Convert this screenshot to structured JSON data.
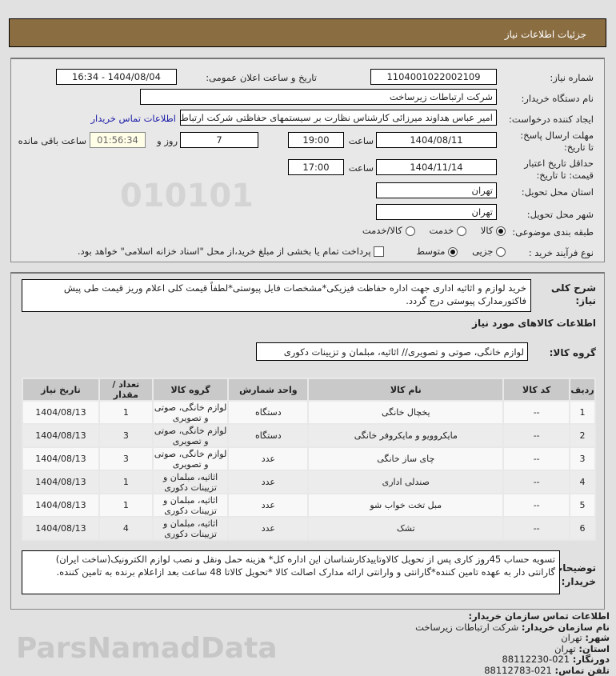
{
  "header": {
    "title": "جزئیات اطلاعات نیاز"
  },
  "form": {
    "need_number_label": "شماره نیاز:",
    "need_number": "1104001022002109",
    "announce_label": "تاریخ و ساعت اعلان عمومی:",
    "announce_value": "1404/08/04 - 16:34",
    "buyer_org_label": "نام دستگاه خریدار:",
    "buyer_org": "شرکت ارتباطات زیرساخت",
    "creator_label": "ایجاد کننده درخواست:",
    "creator": "امیر عباس هداوند میرزائی کارشناس نظارت بر سیستمهای حفاظتی شرکت ارتباطات زیرساخت",
    "contact_link": "اطلاعات تماس خریدار",
    "deadline_label": "مهلت ارسال پاسخ: تا تاریخ:",
    "deadline_date": "1404/08/11",
    "time_label": "ساعت",
    "deadline_time": "19:00",
    "days": "7",
    "days_label": "روز و",
    "remaining": "01:56:34",
    "remaining_label": "ساعت باقی مانده",
    "validity_label": "حداقل تاریخ اعتبار قیمت: تا تاریخ:",
    "validity_date": "1404/11/14",
    "validity_time": "17:00",
    "province_label": "استان محل تحویل:",
    "province": "تهران",
    "city_label": "شهر محل تحویل:",
    "city": "تهران",
    "category_label": "طبقه بندی موضوعی:",
    "category_options": [
      "کالا",
      "خدمت",
      "کالا/خدمت"
    ],
    "category_selected": "کالا",
    "process_label": "نوع فرآیند خرید :",
    "process_options": [
      "جزیی",
      "متوسط"
    ],
    "process_selected": "متوسط",
    "treasury_text": "پرداخت تمام یا بخشی از مبلغ خرید،از محل \"اسناد خزانه اسلامی\" خواهد بود."
  },
  "details": {
    "desc_label": "شرح کلی نیاز:",
    "desc": "خرید لوازم و اثاثیه اداری جهت اداره حفاظت فیزیکی*مشخصات فایل پیوستی*لطفاً قیمت کلی اعلام وریز قیمت طی پیش فاکتورمدارک پیوستی درج گردد.",
    "goods_title": "اطلاعات کالاهای مورد نیاز",
    "group_label": "گروه کالا:",
    "group": "لوازم خانگی، صوتی و تصویری// اثاثیه، مبلمان و تزیینات دکوری",
    "table": {
      "headers": [
        "ردیف",
        "کد کالا",
        "نام کالا",
        "واحد شمارش",
        "گروه کالا",
        "تعداد / مقدار",
        "تاریخ نیاز"
      ],
      "rows": [
        [
          "1",
          "--",
          "یخچال خانگی",
          "دستگاه",
          "لوازم خانگی، صوتی و تصویری",
          "1",
          "1404/08/13"
        ],
        [
          "2",
          "--",
          "مایکروویو و مایکروفر خانگی",
          "دستگاه",
          "لوازم خانگی، صوتی و تصویری",
          "3",
          "1404/08/13"
        ],
        [
          "3",
          "--",
          "چای ساز خانگی",
          "عدد",
          "لوازم خانگی، صوتی و تصویری",
          "3",
          "1404/08/13"
        ],
        [
          "4",
          "--",
          "صندلی اداری",
          "عدد",
          "اثاثیه، مبلمان و تزیینات دکوری",
          "1",
          "1404/08/13"
        ],
        [
          "5",
          "--",
          "مبل تخت خواب شو",
          "عدد",
          "اثاثیه، مبلمان و تزیینات دکوری",
          "1",
          "1404/08/13"
        ],
        [
          "6",
          "--",
          "تشک",
          "عدد",
          "اثاثیه، مبلمان و تزیینات دکوری",
          "4",
          "1404/08/13"
        ]
      ]
    },
    "notes_label": "توضیحات خریدار:",
    "notes": "تسویه حساب 45روز کاری پس از تحویل کالاوتاییدکارشناسان این اداره کل* هزینه حمل ونقل و نصب لوازم الکترونیک(ساخت ایران) گارانتی دار به عهده تامین کننده*گارانتی و وارانتی ارائه مدارک اصالت کالا *تحویل کالاتا 48 ساعت بعد ازاعلام برنده به تامین کننده."
  },
  "contact": {
    "title": "اطلاعات تماس سازمان خریدار:",
    "org_label": "نام سازمان خریدار:",
    "org": "شرکت ارتباطات زیرساخت",
    "city_label": "شهر:",
    "city": "تهران",
    "province_label": "استان:",
    "province": "تهران",
    "fax_label": "دورنگار:",
    "fax": "021-88112230",
    "phone_label": "تلفن تماس:",
    "phone": "021-88112783"
  },
  "watermark": "ParsNamadData"
}
